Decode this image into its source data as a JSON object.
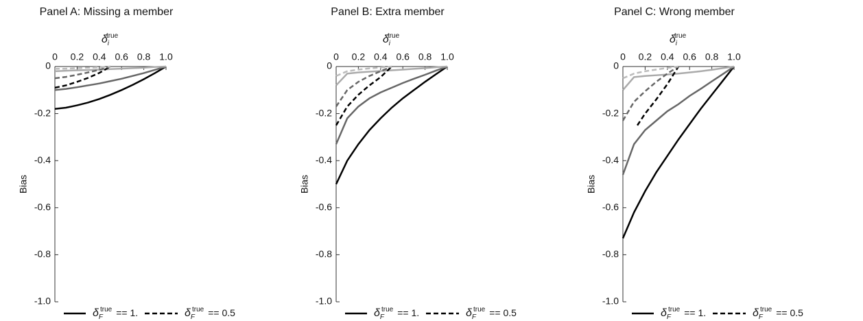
{
  "chart_data": [
    {
      "type": "line",
      "title": "Panel A: Missing a member",
      "xlabel": {
        "symbol": "δ",
        "sub": "i",
        "sup": "true"
      },
      "ylabel": "Bias",
      "xlim": [
        0,
        1
      ],
      "ylim": [
        -1,
        0
      ],
      "xticks": [
        0,
        0.2,
        0.4,
        0.6,
        0.8,
        {
          "value": 1,
          "label": "1.0"
        }
      ],
      "yticks": [
        0,
        -0.2,
        -0.4,
        -0.6,
        -0.8,
        {
          "value": -1,
          "label": "-1.0"
        }
      ],
      "series": [
        {
          "color": "#000000",
          "dash": false,
          "x": [
            0,
            0.1,
            0.2,
            0.3,
            0.4,
            0.5,
            0.6,
            0.7,
            0.8,
            0.9,
            1
          ],
          "values": [
            -0.18,
            -0.175,
            -0.165,
            -0.153,
            -0.138,
            -0.12,
            -0.1,
            -0.078,
            -0.054,
            -0.028,
            0
          ]
        },
        {
          "color": "#666666",
          "dash": false,
          "x": [
            0,
            0.1,
            0.2,
            0.3,
            0.4,
            0.5,
            0.6,
            0.7,
            0.8,
            0.9,
            1
          ],
          "values": [
            -0.1,
            -0.095,
            -0.088,
            -0.08,
            -0.072,
            -0.062,
            -0.052,
            -0.04,
            -0.028,
            -0.014,
            0
          ]
        },
        {
          "color": "#aaaaaa",
          "dash": false,
          "x": [
            0,
            0.1,
            0.2,
            0.3,
            0.4,
            0.5,
            0.6,
            0.7,
            0.8,
            0.9,
            1
          ],
          "values": [
            -0.02,
            -0.018,
            -0.016,
            -0.015,
            -0.013,
            -0.011,
            -0.009,
            -0.007,
            -0.005,
            -0.002,
            0
          ]
        },
        {
          "color": "#000000",
          "dash": true,
          "x": [
            0,
            0.1,
            0.2,
            0.3,
            0.4,
            0.5
          ],
          "values": [
            -0.09,
            -0.08,
            -0.065,
            -0.048,
            -0.027,
            0
          ]
        },
        {
          "color": "#666666",
          "dash": true,
          "x": [
            0,
            0.1,
            0.2,
            0.3,
            0.4,
            0.5
          ],
          "values": [
            -0.05,
            -0.044,
            -0.035,
            -0.025,
            -0.014,
            0
          ]
        },
        {
          "color": "#bbbbbb",
          "dash": true,
          "x": [
            0,
            0.1,
            0.2,
            0.3,
            0.4,
            0.5
          ],
          "values": [
            -0.01,
            -0.009,
            -0.007,
            -0.005,
            -0.003,
            0
          ]
        }
      ],
      "legend": [
        {
          "dash": false,
          "color": "#000000",
          "label": {
            "symbol": "δ",
            "sub": "F",
            "sup": "true",
            "rest": "== 1."
          }
        },
        {
          "dash": true,
          "color": "#000000",
          "label": {
            "symbol": "δ",
            "sub": "F",
            "sup": "true",
            "rest": "== 0.5"
          }
        }
      ]
    },
    {
      "type": "line",
      "title": "Panel B: Extra member",
      "xlabel": {
        "symbol": "δ",
        "sub": "i",
        "sup": "true"
      },
      "ylabel": "Bias",
      "xlim": [
        0,
        1
      ],
      "ylim": [
        -1,
        0
      ],
      "xticks": [
        0,
        0.2,
        0.4,
        0.6,
        0.8,
        {
          "value": 1,
          "label": "1.0"
        }
      ],
      "yticks": [
        0,
        -0.2,
        -0.4,
        -0.6,
        -0.8,
        {
          "value": -1,
          "label": "-1.0"
        }
      ],
      "series": [
        {
          "color": "#000000",
          "dash": false,
          "x": [
            0,
            0.1,
            0.2,
            0.3,
            0.4,
            0.5,
            0.6,
            0.7,
            0.8,
            0.9,
            1
          ],
          "values": [
            -0.5,
            -0.4,
            -0.33,
            -0.27,
            -0.22,
            -0.175,
            -0.135,
            -0.1,
            -0.065,
            -0.032,
            0
          ]
        },
        {
          "color": "#666666",
          "dash": false,
          "x": [
            0,
            0.1,
            0.2,
            0.3,
            0.4,
            0.5,
            0.6,
            0.7,
            0.8,
            0.9,
            1
          ],
          "values": [
            -0.33,
            -0.22,
            -0.17,
            -0.135,
            -0.11,
            -0.09,
            -0.07,
            -0.052,
            -0.035,
            -0.017,
            0
          ]
        },
        {
          "color": "#aaaaaa",
          "dash": false,
          "x": [
            0,
            0.1,
            0.2,
            0.3,
            0.4,
            0.5,
            0.6,
            0.7,
            0.8,
            0.9,
            1
          ],
          "values": [
            -0.08,
            -0.03,
            -0.025,
            -0.022,
            -0.019,
            -0.016,
            -0.013,
            -0.01,
            -0.007,
            -0.003,
            0
          ]
        },
        {
          "color": "#000000",
          "dash": true,
          "x": [
            0,
            0.1,
            0.2,
            0.3,
            0.4,
            0.5
          ],
          "values": [
            -0.25,
            -0.17,
            -0.12,
            -0.08,
            -0.045,
            0
          ]
        },
        {
          "color": "#666666",
          "dash": true,
          "x": [
            0,
            0.1,
            0.2,
            0.3,
            0.4,
            0.5
          ],
          "values": [
            -0.17,
            -0.1,
            -0.065,
            -0.04,
            -0.02,
            0
          ]
        },
        {
          "color": "#bbbbbb",
          "dash": true,
          "x": [
            0,
            0.1,
            0.2,
            0.3,
            0.4,
            0.5
          ],
          "values": [
            -0.04,
            -0.02,
            -0.013,
            -0.008,
            -0.004,
            0
          ]
        }
      ],
      "legend": [
        {
          "dash": false,
          "color": "#000000",
          "label": {
            "symbol": "δ",
            "sub": "F",
            "sup": "true",
            "rest": "== 1."
          }
        },
        {
          "dash": true,
          "color": "#000000",
          "label": {
            "symbol": "δ",
            "sub": "F",
            "sup": "true",
            "rest": "== 0.5"
          }
        }
      ]
    },
    {
      "type": "line",
      "title": "Panel C: Wrong member",
      "xlabel": {
        "symbol": "δ",
        "sub": "i",
        "sup": "true"
      },
      "ylabel": "Bias",
      "xlim": [
        0,
        1
      ],
      "ylim": [
        -1,
        0
      ],
      "xticks": [
        0,
        0.2,
        0.4,
        0.6,
        0.8,
        {
          "value": 1,
          "label": "1.0"
        }
      ],
      "yticks": [
        0,
        -0.2,
        -0.4,
        -0.6,
        -0.8,
        {
          "value": -1,
          "label": "-1.0"
        }
      ],
      "series": [
        {
          "color": "#000000",
          "dash": false,
          "x": [
            0,
            0.1,
            0.2,
            0.3,
            0.4,
            0.5,
            0.6,
            0.7,
            0.8,
            0.9,
            1
          ],
          "values": [
            -0.73,
            -0.62,
            -0.53,
            -0.45,
            -0.38,
            -0.31,
            -0.245,
            -0.18,
            -0.12,
            -0.06,
            0
          ]
        },
        {
          "color": "#666666",
          "dash": false,
          "x": [
            0,
            0.1,
            0.2,
            0.3,
            0.4,
            0.5,
            0.6,
            0.7,
            0.8,
            0.9,
            1
          ],
          "values": [
            -0.46,
            -0.33,
            -0.27,
            -0.23,
            -0.19,
            -0.16,
            -0.125,
            -0.095,
            -0.063,
            -0.032,
            0
          ]
        },
        {
          "color": "#aaaaaa",
          "dash": false,
          "x": [
            0,
            0.1,
            0.2,
            0.3,
            0.4,
            0.5,
            0.6,
            0.7,
            0.8,
            0.9,
            1
          ],
          "values": [
            -0.1,
            -0.045,
            -0.04,
            -0.037,
            -0.034,
            -0.03,
            -0.025,
            -0.02,
            -0.014,
            -0.007,
            0
          ]
        },
        {
          "color": "#000000",
          "dash": true,
          "x": [
            0.13,
            0.2,
            0.3,
            0.4,
            0.5
          ],
          "values": [
            -0.25,
            -0.2,
            -0.14,
            -0.075,
            0
          ]
        },
        {
          "color": "#666666",
          "dash": true,
          "x": [
            0,
            0.1,
            0.2,
            0.3,
            0.4,
            0.5
          ],
          "values": [
            -0.23,
            -0.15,
            -0.105,
            -0.065,
            -0.03,
            0
          ]
        },
        {
          "color": "#bbbbbb",
          "dash": true,
          "x": [
            0,
            0.1,
            0.2,
            0.3,
            0.4,
            0.5
          ],
          "values": [
            -0.05,
            -0.03,
            -0.02,
            -0.013,
            -0.006,
            0
          ]
        }
      ],
      "legend": [
        {
          "dash": false,
          "color": "#000000",
          "label": {
            "symbol": "δ",
            "sub": "F",
            "sup": "true",
            "rest": "== 1."
          }
        },
        {
          "dash": true,
          "color": "#000000",
          "label": {
            "symbol": "δ",
            "sub": "F",
            "sup": "true",
            "rest": "== 0.5"
          }
        }
      ]
    }
  ]
}
